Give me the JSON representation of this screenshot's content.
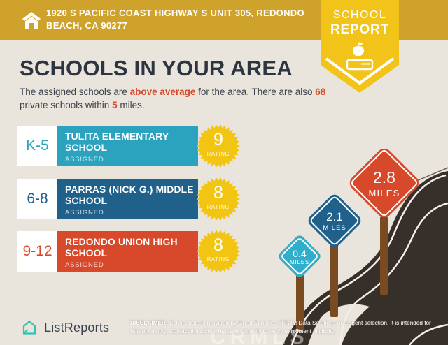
{
  "header": {
    "address": "1920 S PACIFIC COAST HIGHWAY S UNIT 305, REDONDO BEACH, CA 90277",
    "icon": "house-icon",
    "background_color": "#CFA22B"
  },
  "ribbon_badge": {
    "line1": "SCHOOL",
    "line2": "REPORT",
    "icons": [
      "apple-icon",
      "book-icon"
    ],
    "background_color": "#F2C318"
  },
  "title": "SCHOOLS IN YOUR AREA",
  "subtitle": {
    "part1": "The assigned schools are ",
    "highlight1": "above average",
    "part2": " for the area. There are also ",
    "highlight2": "68",
    "part3": " private schools within ",
    "highlight3": "5",
    "part4": " miles.",
    "highlight_color": "#D8492B"
  },
  "schools": [
    {
      "grade": "K-5",
      "name": "TULITA ELEMENTARY SCHOOL",
      "status": "ASSIGNED",
      "rating": "9",
      "rating_label": "RATING",
      "color": "#2BA2BE"
    },
    {
      "grade": "6-8",
      "name": "PARRAS (NICK G.) MIDDLE SCHOOL",
      "status": "ASSIGNED",
      "rating": "8",
      "rating_label": "RATING",
      "color": "#20618C"
    },
    {
      "grade": "9-12",
      "name": "REDONDO UNION HIGH SCHOOL",
      "status": "ASSIGNED",
      "rating": "8",
      "rating_label": "RATING",
      "color": "#D8492B"
    }
  ],
  "distance_signs": [
    {
      "distance": "0.4",
      "unit": "MILES",
      "color": "#31AECB"
    },
    {
      "distance": "2.1",
      "unit": "MILES",
      "color": "#20618C"
    },
    {
      "distance": "2.8",
      "unit": "MILES",
      "color": "#D8492B"
    }
  ],
  "scene": {
    "road_color": "#362F2A",
    "post_color": "#7A4A21",
    "burst_color": "#F3C513"
  },
  "footer": {
    "brand": "ListReports",
    "brand_icon": "listreports-house-icon",
    "disclaimer_label": "DISCLAIMER:",
    "disclaimer_text": " School data is provided by Great Schools, ATTOM Data Solutions and agent selection. It is intended for reference only. Contact the school or district directly to verify enrollment eligibility."
  },
  "watermark": "CRMLS",
  "page": {
    "background_color": "#E9E4DC"
  }
}
